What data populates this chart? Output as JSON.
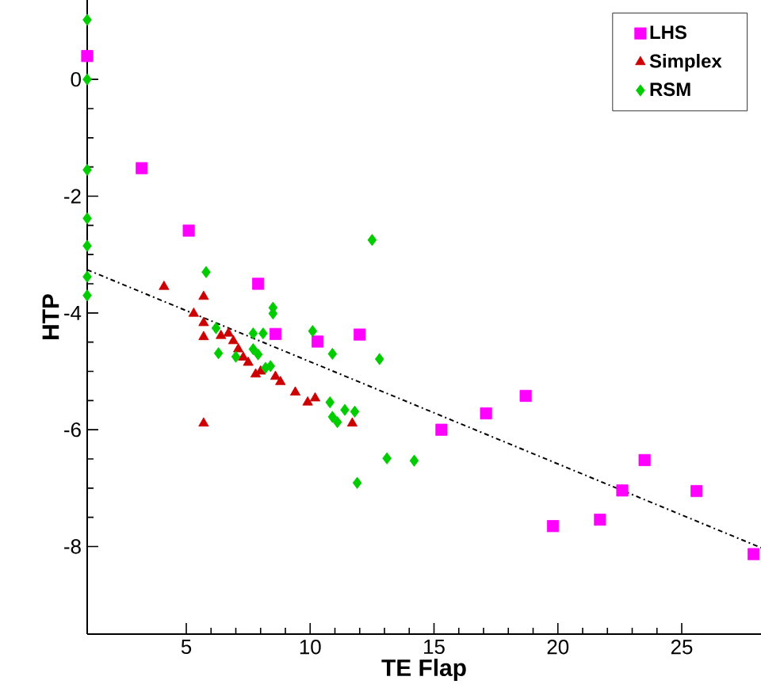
{
  "chart_data": {
    "type": "scatter",
    "xlabel": "TE Flap",
    "ylabel": "HTP",
    "xlim": [
      1,
      28.2
    ],
    "ylim": [
      -9.5,
      1.36
    ],
    "xticks": [
      5,
      10,
      15,
      20,
      25
    ],
    "yticks": [
      -8,
      -6,
      -4,
      -2,
      0
    ],
    "grid": false,
    "legend": "top right",
    "series": [
      {
        "name": "LHS",
        "color": "#ff00ff",
        "marker": "square",
        "x": [
          1.0,
          3.2,
          5.1,
          7.9,
          8.6,
          10.3,
          12.0,
          15.3,
          17.1,
          18.7,
          19.8,
          21.7,
          22.6,
          23.5,
          25.6,
          27.9
        ],
        "values": [
          0.4,
          -1.52,
          -2.59,
          -3.5,
          -4.36,
          -4.49,
          -4.37,
          -6.0,
          -5.72,
          -5.42,
          -7.65,
          -7.54,
          -7.04,
          -6.52,
          -7.05,
          -8.13
        ]
      },
      {
        "name": "Simplex",
        "color": "#cc0000",
        "marker": "triangle",
        "x": [
          4.1,
          5.7,
          5.3,
          5.7,
          5.7,
          5.7,
          6.4,
          6.7,
          6.9,
          7.1,
          7.3,
          7.5,
          7.8,
          8.0,
          8.6,
          8.8,
          9.4,
          9.9,
          10.2,
          11.7
        ],
        "values": [
          -3.55,
          -3.72,
          -4.01,
          -4.17,
          -4.41,
          -5.89,
          -4.39,
          -4.35,
          -4.48,
          -4.62,
          -4.76,
          -4.85,
          -5.05,
          -5.0,
          -5.09,
          -5.18,
          -5.36,
          -5.53,
          -5.46,
          -5.89
        ]
      },
      {
        "name": "RSM",
        "color": "#00cc00",
        "marker": "diamond",
        "x": [
          1.0,
          1.0,
          1.0,
          1.0,
          1.0,
          1.0,
          1.0,
          12.5,
          5.8,
          8.5,
          8.5,
          10.1,
          6.2,
          7.7,
          8.1,
          6.3,
          7.0,
          7.7,
          7.9,
          8.2,
          8.4,
          10.9,
          12.8,
          10.8,
          10.9,
          11.1,
          11.4,
          11.8,
          13.1,
          14.2,
          11.9
        ],
        "values": [
          1.02,
          0,
          -1.55,
          -2.38,
          -2.85,
          -3.38,
          -3.7,
          -2.75,
          -3.3,
          -3.91,
          -4.01,
          -4.31,
          -4.26,
          -4.35,
          -4.35,
          -4.69,
          -4.75,
          -4.62,
          -4.71,
          -4.94,
          -4.91,
          -4.7,
          -4.79,
          -5.53,
          -5.78,
          -5.87,
          -5.66,
          -5.69,
          -6.49,
          -6.53,
          -6.91
        ]
      },
      {
        "type": "line",
        "color": "#000000",
        "line_style": "dashdot",
        "marker": "none",
        "x": [
          1,
          28.2
        ],
        "values": [
          -3.26,
          -8.02
        ]
      }
    ]
  }
}
